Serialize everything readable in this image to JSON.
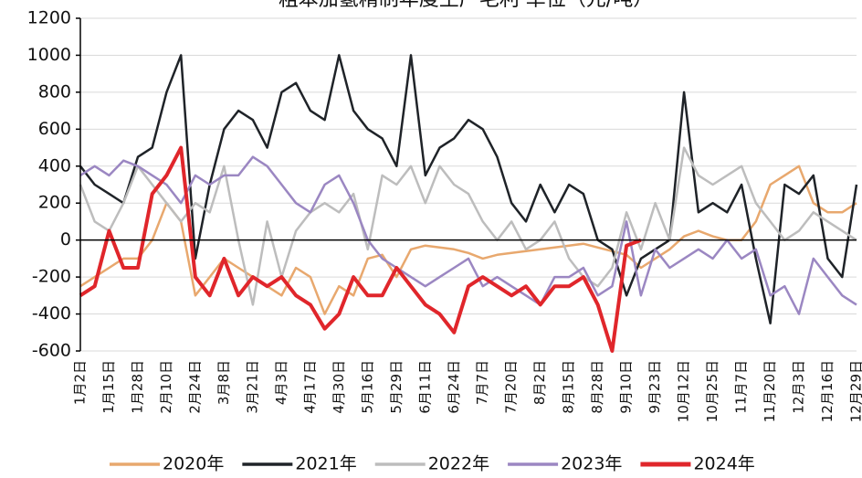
{
  "chart_data": {
    "type": "line",
    "title": "粗苯加氢精制年度生产毛利 单位（元/吨）",
    "categories": [
      "1月2日",
      null,
      "1月15日",
      null,
      "1月28日",
      null,
      "2月10日",
      null,
      "2月24日",
      null,
      "3月8日",
      null,
      "3月21日",
      null,
      "4月3日",
      null,
      "4月17日",
      null,
      "4月30日",
      null,
      "5月16日",
      null,
      "5月29日",
      null,
      "6月11日",
      null,
      "6月24日",
      null,
      "7月7日",
      null,
      "7月20日",
      null,
      "8月2日",
      null,
      "8月15日",
      null,
      "8月28日",
      null,
      "9月10日",
      null,
      "9月23日",
      null,
      "10月12日",
      null,
      "10月25日",
      null,
      "11月7日",
      null,
      "11月20日",
      null,
      "12月3日",
      null,
      "12月16日",
      null,
      "12月29日"
    ],
    "ylim": [
      -600,
      1200
    ],
    "yticks": [
      -600,
      -400,
      -200,
      0,
      200,
      400,
      600,
      800,
      1000,
      1200
    ],
    "series": [
      {
        "name": "2020年",
        "color": "#e8a86e",
        "width": 2.5,
        "values": [
          -250,
          -200,
          -150,
          -100,
          -100,
          0,
          200,
          100,
          -300,
          -200,
          -100,
          -150,
          -200,
          -250,
          -300,
          -150,
          -200,
          -400,
          -250,
          -300,
          -100,
          -80,
          -200,
          -50,
          -30,
          -40,
          -50,
          -70,
          -100,
          -80,
          -70,
          -60,
          -50,
          -40,
          -30,
          -20,
          -40,
          -60,
          -80,
          -150,
          -100,
          -50,
          20,
          50,
          20,
          0,
          0,
          100,
          300,
          350,
          400,
          200,
          150,
          150,
          200
        ]
      },
      {
        "name": "2021年",
        "color": "#1f2328",
        "width": 2.5,
        "values": [
          400,
          300,
          250,
          200,
          450,
          500,
          800,
          1000,
          -100,
          300,
          600,
          700,
          650,
          500,
          800,
          850,
          700,
          650,
          1000,
          700,
          600,
          550,
          400,
          1000,
          350,
          500,
          550,
          650,
          600,
          450,
          200,
          100,
          300,
          150,
          300,
          250,
          0,
          -50,
          -300,
          -100,
          -50,
          0,
          800,
          150,
          200,
          150,
          300,
          -100,
          -450,
          300,
          250,
          350,
          -100,
          -200,
          300
        ]
      },
      {
        "name": "2022年",
        "color": "#bdbdbd",
        "width": 2.5,
        "values": [
          300,
          100,
          50,
          200,
          400,
          300,
          200,
          100,
          200,
          150,
          400,
          0,
          -350,
          100,
          -200,
          50,
          150,
          200,
          150,
          250,
          -50,
          350,
          300,
          400,
          200,
          400,
          300,
          250,
          100,
          0,
          100,
          -50,
          0,
          100,
          -100,
          -200,
          -250,
          -150,
          150,
          -50,
          200,
          0,
          500,
          350,
          300,
          350,
          400,
          200,
          100,
          0,
          50,
          150,
          100,
          50,
          0
        ]
      },
      {
        "name": "2023年",
        "color": "#9b87c2",
        "width": 2.5,
        "values": [
          350,
          400,
          350,
          430,
          400,
          350,
          300,
          200,
          350,
          300,
          350,
          350,
          450,
          400,
          300,
          200,
          150,
          300,
          350,
          200,
          0,
          -100,
          -150,
          -200,
          -250,
          -200,
          -150,
          -100,
          -250,
          -200,
          -250,
          -300,
          -350,
          -200,
          -200,
          -150,
          -300,
          -250,
          100,
          -300,
          -50,
          -150,
          -100,
          -50,
          -100,
          0,
          -100,
          -50,
          -300,
          -250,
          -400,
          -100,
          -200,
          -300,
          -350
        ]
      },
      {
        "name": "2024年",
        "color": "#e0262b",
        "width": 4,
        "values": [
          -300,
          -250,
          50,
          -150,
          -150,
          250,
          350,
          500,
          -200,
          -300,
          -100,
          -300,
          -200,
          -250,
          -200,
          -300,
          -350,
          -480,
          -400,
          -200,
          -300,
          -300,
          -150,
          -250,
          -350,
          -400,
          -500,
          -250,
          -200,
          -250,
          -300,
          -250,
          -350,
          -250,
          -250,
          -200,
          -350,
          -600,
          -30,
          0,
          null,
          null,
          null,
          null,
          null,
          null,
          null,
          null,
          null,
          null,
          null,
          null,
          null,
          null,
          null
        ]
      }
    ]
  }
}
